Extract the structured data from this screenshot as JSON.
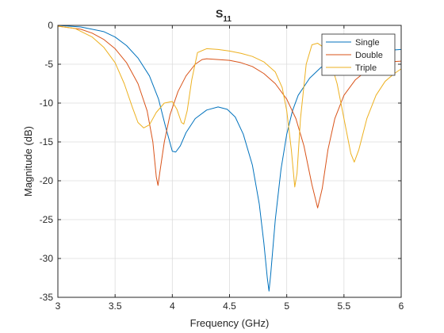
{
  "chart_data": {
    "type": "line",
    "title": "S",
    "title_subscript": "11",
    "xlabel": "Frequency (GHz)",
    "ylabel": "Magnitude (dB)",
    "xlim": [
      3,
      6
    ],
    "ylim": [
      -35,
      0
    ],
    "xticks": [
      3,
      3.5,
      4,
      4.5,
      5,
      5.5,
      6
    ],
    "xtick_labels": [
      "3",
      "3.5",
      "4",
      "4.5",
      "5",
      "5.5",
      "6"
    ],
    "yticks": [
      0,
      -5,
      -10,
      -15,
      -20,
      -25,
      -30,
      -35
    ],
    "ytick_labels": [
      "0",
      "-5",
      "-10",
      "-15",
      "-20",
      "-25",
      "-30",
      "-35"
    ],
    "grid": true,
    "legend_position": "top-right",
    "series": [
      {
        "name": "Single",
        "color": "#0072BD",
        "points": [
          [
            3,
            0
          ],
          [
            3.2,
            -0.2
          ],
          [
            3.4,
            -0.8
          ],
          [
            3.5,
            -1.5
          ],
          [
            3.6,
            -2.6
          ],
          [
            3.7,
            -4.2
          ],
          [
            3.8,
            -6.5
          ],
          [
            3.88,
            -9.5
          ],
          [
            3.94,
            -13
          ],
          [
            4.0,
            -16.2
          ],
          [
            4.03,
            -16.3
          ],
          [
            4.07,
            -15.5
          ],
          [
            4.12,
            -13.8
          ],
          [
            4.2,
            -12
          ],
          [
            4.3,
            -10.9
          ],
          [
            4.4,
            -10.5
          ],
          [
            4.48,
            -10.8
          ],
          [
            4.55,
            -11.8
          ],
          [
            4.62,
            -14
          ],
          [
            4.7,
            -18
          ],
          [
            4.76,
            -23
          ],
          [
            4.8,
            -28
          ],
          [
            4.83,
            -32.5
          ],
          [
            4.845,
            -34.2
          ],
          [
            4.86,
            -32
          ],
          [
            4.9,
            -25
          ],
          [
            4.95,
            -18.5
          ],
          [
            5.0,
            -14
          ],
          [
            5.05,
            -11
          ],
          [
            5.1,
            -9
          ],
          [
            5.2,
            -6.8
          ],
          [
            5.3,
            -5.4
          ],
          [
            5.4,
            -4.5
          ],
          [
            5.5,
            -4
          ],
          [
            5.6,
            -3.6
          ],
          [
            5.7,
            -3.4
          ],
          [
            5.8,
            -3.3
          ],
          [
            5.9,
            -3.2
          ],
          [
            6,
            -3.1
          ]
        ]
      },
      {
        "name": "Double",
        "color": "#D95319",
        "points": [
          [
            3,
            -0.1
          ],
          [
            3.2,
            -0.5
          ],
          [
            3.3,
            -1
          ],
          [
            3.4,
            -1.8
          ],
          [
            3.5,
            -3
          ],
          [
            3.6,
            -4.8
          ],
          [
            3.7,
            -7.5
          ],
          [
            3.78,
            -11
          ],
          [
            3.83,
            -15
          ],
          [
            3.86,
            -19.5
          ],
          [
            3.875,
            -20.6
          ],
          [
            3.89,
            -19
          ],
          [
            3.93,
            -15
          ],
          [
            3.98,
            -11.5
          ],
          [
            4.05,
            -8.5
          ],
          [
            4.12,
            -6.5
          ],
          [
            4.2,
            -5
          ],
          [
            4.26,
            -4.4
          ],
          [
            4.3,
            -4.3
          ],
          [
            4.4,
            -4.4
          ],
          [
            4.5,
            -4.5
          ],
          [
            4.6,
            -4.8
          ],
          [
            4.7,
            -5.3
          ],
          [
            4.8,
            -6.2
          ],
          [
            4.9,
            -7.5
          ],
          [
            5.0,
            -9.5
          ],
          [
            5.08,
            -12
          ],
          [
            5.15,
            -15.5
          ],
          [
            5.22,
            -20.5
          ],
          [
            5.27,
            -23.5
          ],
          [
            5.31,
            -21
          ],
          [
            5.36,
            -16
          ],
          [
            5.42,
            -12
          ],
          [
            5.5,
            -9
          ],
          [
            5.6,
            -7
          ],
          [
            5.7,
            -5.8
          ],
          [
            5.8,
            -5
          ],
          [
            5.9,
            -4.7
          ],
          [
            6,
            -4.6
          ]
        ]
      },
      {
        "name": "Triple",
        "color": "#EDB120",
        "points": [
          [
            3,
            -0.1
          ],
          [
            3.15,
            -0.4
          ],
          [
            3.3,
            -1.5
          ],
          [
            3.4,
            -2.8
          ],
          [
            3.5,
            -4.8
          ],
          [
            3.58,
            -7.5
          ],
          [
            3.65,
            -10.5
          ],
          [
            3.7,
            -12.5
          ],
          [
            3.75,
            -13.2
          ],
          [
            3.8,
            -12.8
          ],
          [
            3.86,
            -11.2
          ],
          [
            3.93,
            -10
          ],
          [
            4.0,
            -9.8
          ],
          [
            4.04,
            -10.8
          ],
          [
            4.08,
            -12.5
          ],
          [
            4.1,
            -12.7
          ],
          [
            4.13,
            -11
          ],
          [
            4.17,
            -7
          ],
          [
            4.22,
            -3.5
          ],
          [
            4.3,
            -3
          ],
          [
            4.4,
            -3.1
          ],
          [
            4.5,
            -3.3
          ],
          [
            4.6,
            -3.6
          ],
          [
            4.7,
            -4
          ],
          [
            4.8,
            -4.7
          ],
          [
            4.9,
            -6
          ],
          [
            4.96,
            -8
          ],
          [
            5.0,
            -11
          ],
          [
            5.04,
            -16
          ],
          [
            5.07,
            -20.8
          ],
          [
            5.09,
            -19
          ],
          [
            5.12,
            -12
          ],
          [
            5.17,
            -5
          ],
          [
            5.22,
            -2.5
          ],
          [
            5.27,
            -2.3
          ],
          [
            5.32,
            -2.8
          ],
          [
            5.38,
            -4.5
          ],
          [
            5.44,
            -7.5
          ],
          [
            5.5,
            -12
          ],
          [
            5.56,
            -16.5
          ],
          [
            5.59,
            -17.6
          ],
          [
            5.63,
            -16
          ],
          [
            5.7,
            -12
          ],
          [
            5.78,
            -9
          ],
          [
            5.86,
            -7.2
          ],
          [
            5.94,
            -6.2
          ],
          [
            6,
            -5.6
          ]
        ]
      }
    ]
  }
}
